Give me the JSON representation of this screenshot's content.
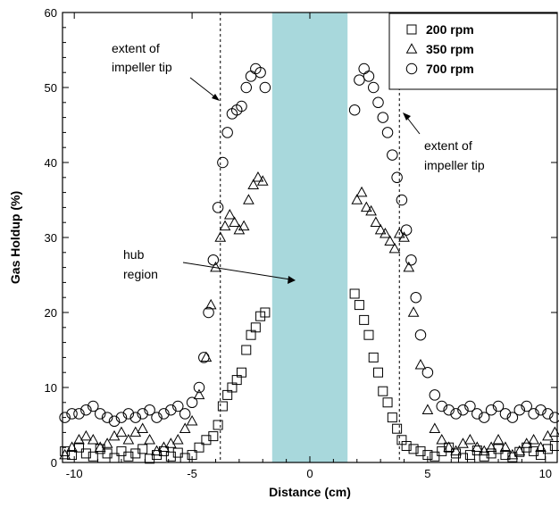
{
  "chart_data": {
    "type": "scatter",
    "title": "",
    "xlabel": "Distance (cm)",
    "ylabel": "Gas Holdup (%)",
    "xlim": [
      -10.5,
      10.5
    ],
    "ylim": [
      0,
      60
    ],
    "xticks": [
      -10,
      -5,
      0,
      5,
      10
    ],
    "yticks": [
      0,
      10,
      20,
      30,
      40,
      50,
      60
    ],
    "grid": false,
    "legend_position": "top-right",
    "hub_region": {
      "x": [
        -1.6,
        1.6
      ],
      "color": "#a8d8dc",
      "label": "hub\nregion"
    },
    "impeller_tip_lines": [
      -3.8,
      3.8
    ],
    "annotations": [
      {
        "text_lines": [
          "extent of",
          "impeller tip"
        ],
        "side": "left"
      },
      {
        "text_lines": [
          "extent of",
          "impeller tip"
        ],
        "side": "right"
      },
      {
        "text_lines": [
          "hub",
          "region"
        ],
        "side": "center"
      }
    ],
    "series": [
      {
        "name": "200 rpm",
        "marker": "square",
        "x": [
          -10.4,
          -10.1,
          -9.8,
          -9.5,
          -9.2,
          -8.9,
          -8.6,
          -8.3,
          -8.0,
          -7.7,
          -7.4,
          -7.1,
          -6.8,
          -6.5,
          -6.2,
          -5.9,
          -5.6,
          -5.3,
          -5.0,
          -4.7,
          -4.4,
          -4.1,
          -3.9,
          -3.7,
          -3.5,
          -3.3,
          -3.1,
          -2.9,
          -2.7,
          -2.5,
          -2.3,
          -2.1,
          -1.9,
          1.9,
          2.1,
          2.3,
          2.5,
          2.7,
          2.9,
          3.1,
          3.3,
          3.5,
          3.7,
          3.9,
          4.1,
          4.4,
          4.7,
          5.0,
          5.3,
          5.6,
          5.9,
          6.2,
          6.5,
          6.8,
          7.1,
          7.4,
          7.7,
          8.0,
          8.3,
          8.6,
          8.9,
          9.2,
          9.5,
          9.8,
          10.1,
          10.4
        ],
        "values": [
          1.5,
          1.0,
          2.0,
          1.2,
          0.8,
          1.8,
          1.2,
          0.6,
          1.5,
          0.8,
          1.2,
          1.8,
          0.5,
          1.0,
          1.5,
          0.8,
          1.3,
          0.6,
          1.0,
          2.0,
          3.0,
          3.5,
          5.0,
          7.5,
          9.0,
          10.0,
          11.0,
          12.0,
          15.0,
          17.0,
          18.0,
          19.5,
          20.0,
          22.5,
          21.0,
          19.0,
          17.0,
          14.0,
          12.0,
          9.5,
          8.0,
          6.0,
          4.5,
          3.0,
          2.2,
          1.8,
          1.5,
          1.0,
          0.8,
          1.5,
          2.0,
          1.2,
          0.6,
          1.0,
          1.6,
          0.8,
          1.2,
          1.8,
          1.0,
          0.7,
          1.4,
          2.0,
          1.5,
          1.0,
          1.8,
          2.2
        ]
      },
      {
        "name": "350 rpm",
        "marker": "triangle",
        "x": [
          -10.4,
          -10.1,
          -9.8,
          -9.5,
          -9.2,
          -8.9,
          -8.6,
          -8.3,
          -8.0,
          -7.7,
          -7.4,
          -7.1,
          -6.8,
          -6.5,
          -6.2,
          -5.9,
          -5.6,
          -5.3,
          -5.0,
          -4.7,
          -4.4,
          -4.2,
          -4.0,
          -3.8,
          -3.6,
          -3.4,
          -3.2,
          -3.0,
          -2.8,
          -2.6,
          -2.4,
          -2.2,
          -2.0,
          2.0,
          2.2,
          2.4,
          2.6,
          2.8,
          3.0,
          3.2,
          3.4,
          3.6,
          3.8,
          4.0,
          4.2,
          4.4,
          4.7,
          5.0,
          5.3,
          5.6,
          5.9,
          6.2,
          6.5,
          6.8,
          7.1,
          7.4,
          7.7,
          8.0,
          8.3,
          8.6,
          8.9,
          9.2,
          9.5,
          9.8,
          10.1,
          10.4
        ],
        "values": [
          1.0,
          2.0,
          3.0,
          3.5,
          3.0,
          2.0,
          2.5,
          3.5,
          4.0,
          3.0,
          4.0,
          4.5,
          3.0,
          1.5,
          2.0,
          2.5,
          3.0,
          4.5,
          5.5,
          9.0,
          14.0,
          21.0,
          26.0,
          30.0,
          31.5,
          33.0,
          32.0,
          31.0,
          31.5,
          35.0,
          37.0,
          38.0,
          37.5,
          35.0,
          36.0,
          34.0,
          33.5,
          32.0,
          31.0,
          30.5,
          29.5,
          28.5,
          30.5,
          30.0,
          26.0,
          20.0,
          13.0,
          7.0,
          4.5,
          3.0,
          2.0,
          1.5,
          2.5,
          3.0,
          2.0,
          1.5,
          2.0,
          3.0,
          2.0,
          1.0,
          1.5,
          2.5,
          3.0,
          2.0,
          3.5,
          4.0
        ]
      },
      {
        "name": "700 rpm",
        "marker": "circle",
        "x": [
          -10.4,
          -10.1,
          -9.8,
          -9.5,
          -9.2,
          -8.9,
          -8.6,
          -8.3,
          -8.0,
          -7.7,
          -7.4,
          -7.1,
          -6.8,
          -6.5,
          -6.2,
          -5.9,
          -5.6,
          -5.3,
          -5.0,
          -4.7,
          -4.5,
          -4.3,
          -4.1,
          -3.9,
          -3.7,
          -3.5,
          -3.3,
          -3.1,
          -2.9,
          -2.7,
          -2.5,
          -2.3,
          -2.1,
          -1.9,
          1.9,
          2.1,
          2.3,
          2.5,
          2.7,
          2.9,
          3.1,
          3.3,
          3.5,
          3.7,
          3.9,
          4.1,
          4.3,
          4.5,
          4.7,
          5.0,
          5.3,
          5.6,
          5.9,
          6.2,
          6.5,
          6.8,
          7.1,
          7.4,
          7.7,
          8.0,
          8.3,
          8.6,
          8.9,
          9.2,
          9.5,
          9.8,
          10.1,
          10.4
        ],
        "values": [
          6.0,
          6.5,
          6.5,
          7.0,
          7.5,
          6.5,
          6.0,
          5.5,
          6.0,
          6.5,
          6.0,
          6.5,
          7.0,
          6.0,
          6.5,
          7.0,
          7.5,
          6.5,
          8.0,
          10.0,
          14.0,
          20.0,
          27.0,
          34.0,
          40.0,
          44.0,
          46.5,
          47.0,
          47.5,
          50.0,
          51.5,
          52.5,
          52.0,
          50.0,
          47.0,
          51.0,
          52.5,
          51.5,
          50.0,
          48.0,
          46.0,
          44.0,
          41.0,
          38.0,
          35.0,
          31.0,
          27.0,
          22.0,
          17.0,
          12.0,
          9.0,
          7.5,
          7.0,
          6.5,
          7.0,
          7.5,
          6.5,
          6.0,
          7.0,
          7.5,
          6.5,
          6.0,
          7.0,
          7.5,
          6.5,
          7.0,
          6.5,
          6.0
        ]
      }
    ]
  }
}
